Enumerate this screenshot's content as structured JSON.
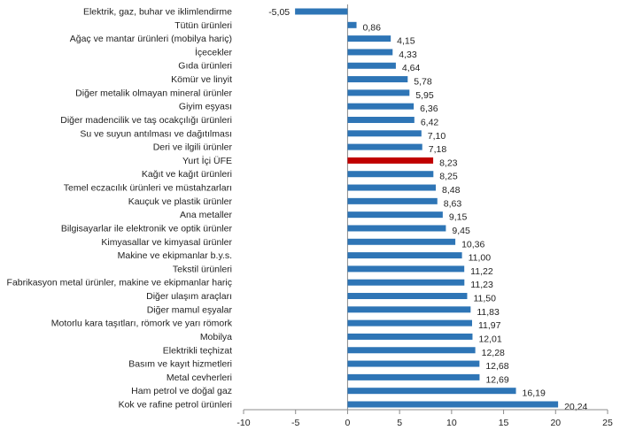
{
  "chart_data": {
    "type": "bar",
    "orientation": "horizontal",
    "categories": [
      "Elektrik, gaz, buhar ve iklimlendirme",
      "Tütün ürünleri",
      "Ağaç ve mantar ürünleri (mobilya hariç)",
      "İçecekler",
      "Gıda ürünleri",
      "Kömür ve linyit",
      "Diğer metalik olmayan mineral ürünler",
      "Giyim eşyası",
      "Diğer madencilik ve taş ocakçılığı ürünleri",
      "Su ve suyun antılması ve dağıtılması",
      "Deri ve ilgili ürünler",
      "Yurt İçi ÜFE",
      "Kağıt ve kağıt ürünleri",
      "Temel eczacılık ürünleri ve müstahzarları",
      "Kauçuk ve plastik ürünler",
      "Ana metaller",
      "Bilgisayarlar ile elektronik ve optik ürünler",
      "Kimyasallar ve kimyasal ürünler",
      "Makine ve ekipmanlar b.y.s.",
      "Tekstil ürünleri",
      "Fabrikasyon metal ürünler, makine ve ekipmanlar hariç",
      "Diğer ulaşım araçları",
      "Diğer mamul eşyalar",
      "Motorlu kara taşıtları, römork ve yarı römork",
      "Mobilya",
      "Elektrikli teçhizat",
      "Basım ve kayıt hizmetleri",
      "Metal cevherleri",
      "Ham petrol ve doğal gaz",
      "Kok ve rafine petrol ürünleri"
    ],
    "values": [
      -5.05,
      0.86,
      4.15,
      4.33,
      4.64,
      5.78,
      5.95,
      6.36,
      6.42,
      7.1,
      7.18,
      8.23,
      8.25,
      8.48,
      8.63,
      9.15,
      9.45,
      10.36,
      11.0,
      11.22,
      11.23,
      11.5,
      11.83,
      11.97,
      12.01,
      12.28,
      12.68,
      12.69,
      16.19,
      20.24
    ],
    "value_labels": [
      "-5,05",
      "0,86",
      "4,15",
      "4,33",
      "4,64",
      "5,78",
      "5,95",
      "6,36",
      "6,42",
      "7,10",
      "7,18",
      "8,23",
      "8,25",
      "8,48",
      "8,63",
      "9,15",
      "9,45",
      "10,36",
      "11,00",
      "11,22",
      "11,23",
      "11,50",
      "11,83",
      "11,97",
      "12,01",
      "12,28",
      "12,68",
      "12,69",
      "16,19",
      "20,24"
    ],
    "highlight_category": "Yurt İçi ÜFE",
    "xlim": [
      -10,
      25
    ],
    "xticks": [
      "-10",
      "-5",
      "0",
      "5",
      "10",
      "15",
      "20",
      "25"
    ],
    "xtick_values": [
      -10,
      -5,
      0,
      5,
      10,
      15,
      20,
      25
    ],
    "grid": false,
    "colors": {
      "bar": "#2e75b6",
      "highlight": "#c00000",
      "axis": "#8c8c8c"
    }
  }
}
